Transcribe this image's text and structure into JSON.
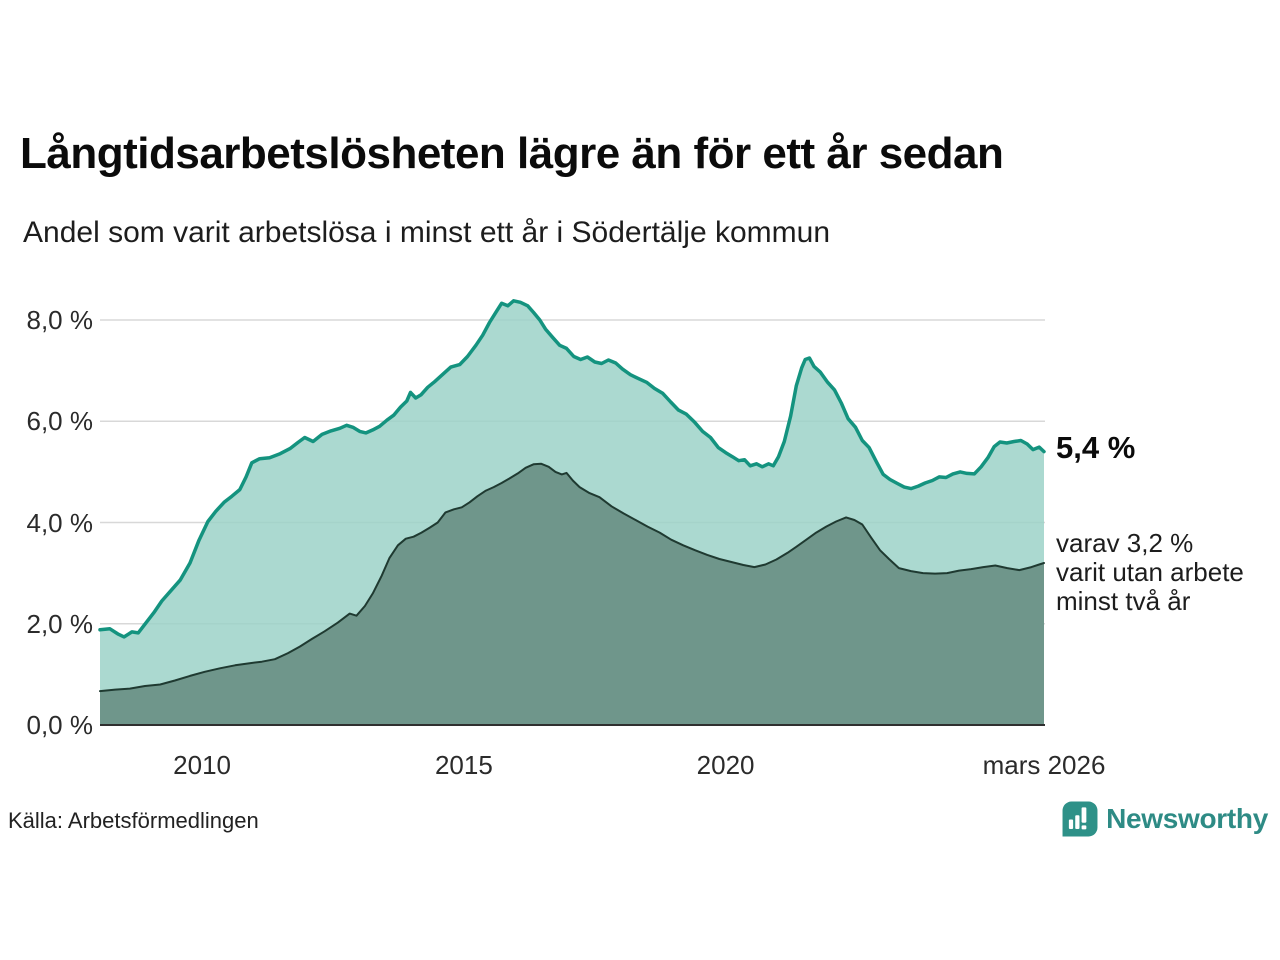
{
  "header": {
    "title": "Långtidsarbetslösheten lägre än för ett år sedan",
    "subtitle": "Andel som varit arbetslösa i minst ett år i Södertälje kommun"
  },
  "annotations": {
    "latest_value": "5,4 %",
    "secondary_note": "varav 3,2 %\nvarit utan arbete\nminst två år"
  },
  "footer": {
    "source": "Källa: Arbetsförmedlingen",
    "brand": {
      "name": "Newsworthy",
      "color": "#2e8b85",
      "icon": "newsworthy-pin-barchart-icon"
    }
  },
  "chart_data": {
    "type": "area",
    "title": "Långtidsarbetslösheten lägre än för ett år sedan",
    "xlabel": "",
    "ylabel": "",
    "grid": true,
    "grid_color": "#d8d8d8",
    "axis_color": "#2f2f2f",
    "x_domain": [
      2008.05,
      2026.1
    ],
    "y_domain": [
      0,
      8.5
    ],
    "x_ticks": [
      {
        "label": "2010",
        "year": 2010.0
      },
      {
        "label": "2015",
        "year": 2015.0
      },
      {
        "label": "2020",
        "year": 2020.0
      },
      {
        "label": "mars 2026",
        "year": 2026.08
      }
    ],
    "y_ticks": [
      {
        "label": "0,0 %",
        "value": 0
      },
      {
        "label": "2,0 %",
        "value": 2
      },
      {
        "label": "4,0 %",
        "value": 4
      },
      {
        "label": "6,0 %",
        "value": 6
      },
      {
        "label": "8,0 %",
        "value": 8
      }
    ],
    "series": [
      {
        "name": "Arbetslösa minst ett år",
        "color": "#14937f",
        "fill": "#9cd2c8",
        "fill_opacity": 0.85,
        "stroke_width": 3.5,
        "points": [
          [
            2008.05,
            1.88
          ],
          [
            2008.24,
            1.9
          ],
          [
            2008.39,
            1.8
          ],
          [
            2008.51,
            1.74
          ],
          [
            2008.66,
            1.84
          ],
          [
            2008.78,
            1.82
          ],
          [
            2008.93,
            2.02
          ],
          [
            2009.08,
            2.22
          ],
          [
            2009.23,
            2.45
          ],
          [
            2009.41,
            2.66
          ],
          [
            2009.58,
            2.86
          ],
          [
            2009.77,
            3.2
          ],
          [
            2009.94,
            3.65
          ],
          [
            2010.11,
            4.02
          ],
          [
            2010.26,
            4.22
          ],
          [
            2010.42,
            4.4
          ],
          [
            2010.57,
            4.52
          ],
          [
            2010.72,
            4.65
          ],
          [
            2010.84,
            4.9
          ],
          [
            2010.95,
            5.18
          ],
          [
            2011.1,
            5.26
          ],
          [
            2011.29,
            5.28
          ],
          [
            2011.49,
            5.36
          ],
          [
            2011.68,
            5.46
          ],
          [
            2011.83,
            5.58
          ],
          [
            2011.96,
            5.68
          ],
          [
            2012.12,
            5.6
          ],
          [
            2012.29,
            5.74
          ],
          [
            2012.46,
            5.81
          ],
          [
            2012.63,
            5.86
          ],
          [
            2012.76,
            5.92
          ],
          [
            2012.88,
            5.88
          ],
          [
            2013.01,
            5.8
          ],
          [
            2013.13,
            5.77
          ],
          [
            2013.26,
            5.83
          ],
          [
            2013.39,
            5.9
          ],
          [
            2013.53,
            6.02
          ],
          [
            2013.66,
            6.12
          ],
          [
            2013.79,
            6.28
          ],
          [
            2013.91,
            6.4
          ],
          [
            2013.98,
            6.57
          ],
          [
            2014.08,
            6.46
          ],
          [
            2014.18,
            6.52
          ],
          [
            2014.31,
            6.67
          ],
          [
            2014.44,
            6.78
          ],
          [
            2014.6,
            6.93
          ],
          [
            2014.75,
            7.07
          ],
          [
            2014.92,
            7.12
          ],
          [
            2015.07,
            7.28
          ],
          [
            2015.23,
            7.5
          ],
          [
            2015.36,
            7.7
          ],
          [
            2015.49,
            7.95
          ],
          [
            2015.61,
            8.15
          ],
          [
            2015.72,
            8.33
          ],
          [
            2015.84,
            8.28
          ],
          [
            2015.95,
            8.38
          ],
          [
            2016.08,
            8.35
          ],
          [
            2016.22,
            8.28
          ],
          [
            2016.33,
            8.15
          ],
          [
            2016.45,
            8.0
          ],
          [
            2016.56,
            7.82
          ],
          [
            2016.7,
            7.65
          ],
          [
            2016.83,
            7.5
          ],
          [
            2016.96,
            7.44
          ],
          [
            2017.1,
            7.28
          ],
          [
            2017.23,
            7.22
          ],
          [
            2017.36,
            7.27
          ],
          [
            2017.5,
            7.17
          ],
          [
            2017.63,
            7.14
          ],
          [
            2017.76,
            7.21
          ],
          [
            2017.9,
            7.15
          ],
          [
            2018.03,
            7.03
          ],
          [
            2018.18,
            6.92
          ],
          [
            2018.34,
            6.84
          ],
          [
            2018.49,
            6.77
          ],
          [
            2018.64,
            6.65
          ],
          [
            2018.8,
            6.55
          ],
          [
            2018.95,
            6.38
          ],
          [
            2019.1,
            6.22
          ],
          [
            2019.25,
            6.14
          ],
          [
            2019.41,
            5.98
          ],
          [
            2019.56,
            5.8
          ],
          [
            2019.71,
            5.68
          ],
          [
            2019.86,
            5.48
          ],
          [
            2020.0,
            5.38
          ],
          [
            2020.13,
            5.3
          ],
          [
            2020.25,
            5.22
          ],
          [
            2020.36,
            5.24
          ],
          [
            2020.47,
            5.12
          ],
          [
            2020.59,
            5.16
          ],
          [
            2020.7,
            5.1
          ],
          [
            2020.82,
            5.16
          ],
          [
            2020.91,
            5.12
          ],
          [
            2021.01,
            5.3
          ],
          [
            2021.12,
            5.6
          ],
          [
            2021.24,
            6.1
          ],
          [
            2021.35,
            6.7
          ],
          [
            2021.45,
            7.05
          ],
          [
            2021.52,
            7.22
          ],
          [
            2021.6,
            7.25
          ],
          [
            2021.69,
            7.08
          ],
          [
            2021.81,
            6.97
          ],
          [
            2021.94,
            6.78
          ],
          [
            2022.08,
            6.62
          ],
          [
            2022.21,
            6.36
          ],
          [
            2022.34,
            6.05
          ],
          [
            2022.48,
            5.88
          ],
          [
            2022.61,
            5.62
          ],
          [
            2022.74,
            5.48
          ],
          [
            2022.88,
            5.2
          ],
          [
            2023.01,
            4.95
          ],
          [
            2023.14,
            4.85
          ],
          [
            2023.28,
            4.77
          ],
          [
            2023.41,
            4.7
          ],
          [
            2023.54,
            4.67
          ],
          [
            2023.68,
            4.72
          ],
          [
            2023.81,
            4.78
          ],
          [
            2023.95,
            4.83
          ],
          [
            2024.08,
            4.9
          ],
          [
            2024.21,
            4.89
          ],
          [
            2024.34,
            4.96
          ],
          [
            2024.48,
            5.0
          ],
          [
            2024.61,
            4.97
          ],
          [
            2024.75,
            4.96
          ],
          [
            2024.88,
            5.1
          ],
          [
            2025.01,
            5.28
          ],
          [
            2025.13,
            5.5
          ],
          [
            2025.24,
            5.59
          ],
          [
            2025.37,
            5.57
          ],
          [
            2025.51,
            5.6
          ],
          [
            2025.64,
            5.62
          ],
          [
            2025.76,
            5.55
          ],
          [
            2025.87,
            5.44
          ],
          [
            2025.99,
            5.49
          ],
          [
            2026.08,
            5.4
          ]
        ]
      },
      {
        "name": "Arbetslösa minst två år",
        "color": "#1f3a31",
        "fill": "#6b9287",
        "fill_opacity": 0.95,
        "stroke_width": 2,
        "points": [
          [
            2008.05,
            0.67
          ],
          [
            2008.34,
            0.7
          ],
          [
            2008.62,
            0.72
          ],
          [
            2008.91,
            0.77
          ],
          [
            2009.2,
            0.8
          ],
          [
            2009.48,
            0.88
          ],
          [
            2009.77,
            0.97
          ],
          [
            2010.05,
            1.05
          ],
          [
            2010.34,
            1.12
          ],
          [
            2010.63,
            1.18
          ],
          [
            2010.91,
            1.22
          ],
          [
            2011.14,
            1.25
          ],
          [
            2011.39,
            1.3
          ],
          [
            2011.64,
            1.42
          ],
          [
            2011.87,
            1.55
          ],
          [
            2012.1,
            1.7
          ],
          [
            2012.34,
            1.85
          ],
          [
            2012.59,
            2.02
          ],
          [
            2012.82,
            2.2
          ],
          [
            2012.95,
            2.16
          ],
          [
            2013.11,
            2.35
          ],
          [
            2013.26,
            2.6
          ],
          [
            2013.43,
            2.95
          ],
          [
            2013.58,
            3.3
          ],
          [
            2013.74,
            3.55
          ],
          [
            2013.89,
            3.68
          ],
          [
            2014.04,
            3.72
          ],
          [
            2014.19,
            3.8
          ],
          [
            2014.35,
            3.9
          ],
          [
            2014.5,
            4.0
          ],
          [
            2014.65,
            4.2
          ],
          [
            2014.81,
            4.26
          ],
          [
            2014.96,
            4.3
          ],
          [
            2015.11,
            4.4
          ],
          [
            2015.26,
            4.52
          ],
          [
            2015.42,
            4.63
          ],
          [
            2015.57,
            4.7
          ],
          [
            2015.72,
            4.78
          ],
          [
            2015.87,
            4.87
          ],
          [
            2016.03,
            4.97
          ],
          [
            2016.18,
            5.08
          ],
          [
            2016.33,
            5.15
          ],
          [
            2016.48,
            5.16
          ],
          [
            2016.62,
            5.1
          ],
          [
            2016.75,
            5.0
          ],
          [
            2016.87,
            4.95
          ],
          [
            2016.96,
            4.98
          ],
          [
            2017.08,
            4.83
          ],
          [
            2017.21,
            4.7
          ],
          [
            2017.4,
            4.58
          ],
          [
            2017.59,
            4.5
          ],
          [
            2017.82,
            4.32
          ],
          [
            2018.05,
            4.18
          ],
          [
            2018.28,
            4.05
          ],
          [
            2018.51,
            3.92
          ],
          [
            2018.74,
            3.8
          ],
          [
            2018.96,
            3.66
          ],
          [
            2019.19,
            3.55
          ],
          [
            2019.42,
            3.45
          ],
          [
            2019.65,
            3.36
          ],
          [
            2019.88,
            3.28
          ],
          [
            2020.11,
            3.22
          ],
          [
            2020.34,
            3.16
          ],
          [
            2020.55,
            3.12
          ],
          [
            2020.76,
            3.17
          ],
          [
            2020.97,
            3.27
          ],
          [
            2021.18,
            3.4
          ],
          [
            2021.35,
            3.52
          ],
          [
            2021.54,
            3.66
          ],
          [
            2021.73,
            3.8
          ],
          [
            2021.92,
            3.92
          ],
          [
            2022.11,
            4.02
          ],
          [
            2022.3,
            4.1
          ],
          [
            2022.46,
            4.05
          ],
          [
            2022.61,
            3.96
          ],
          [
            2022.78,
            3.7
          ],
          [
            2022.95,
            3.45
          ],
          [
            2023.12,
            3.28
          ],
          [
            2023.31,
            3.1
          ],
          [
            2023.54,
            3.04
          ],
          [
            2023.77,
            3.0
          ],
          [
            2024.0,
            2.99
          ],
          [
            2024.23,
            3.0
          ],
          [
            2024.46,
            3.05
          ],
          [
            2024.69,
            3.08
          ],
          [
            2024.92,
            3.12
          ],
          [
            2025.15,
            3.15
          ],
          [
            2025.38,
            3.1
          ],
          [
            2025.61,
            3.06
          ],
          [
            2025.84,
            3.12
          ],
          [
            2025.99,
            3.17
          ],
          [
            2026.08,
            3.2
          ]
        ]
      }
    ]
  }
}
